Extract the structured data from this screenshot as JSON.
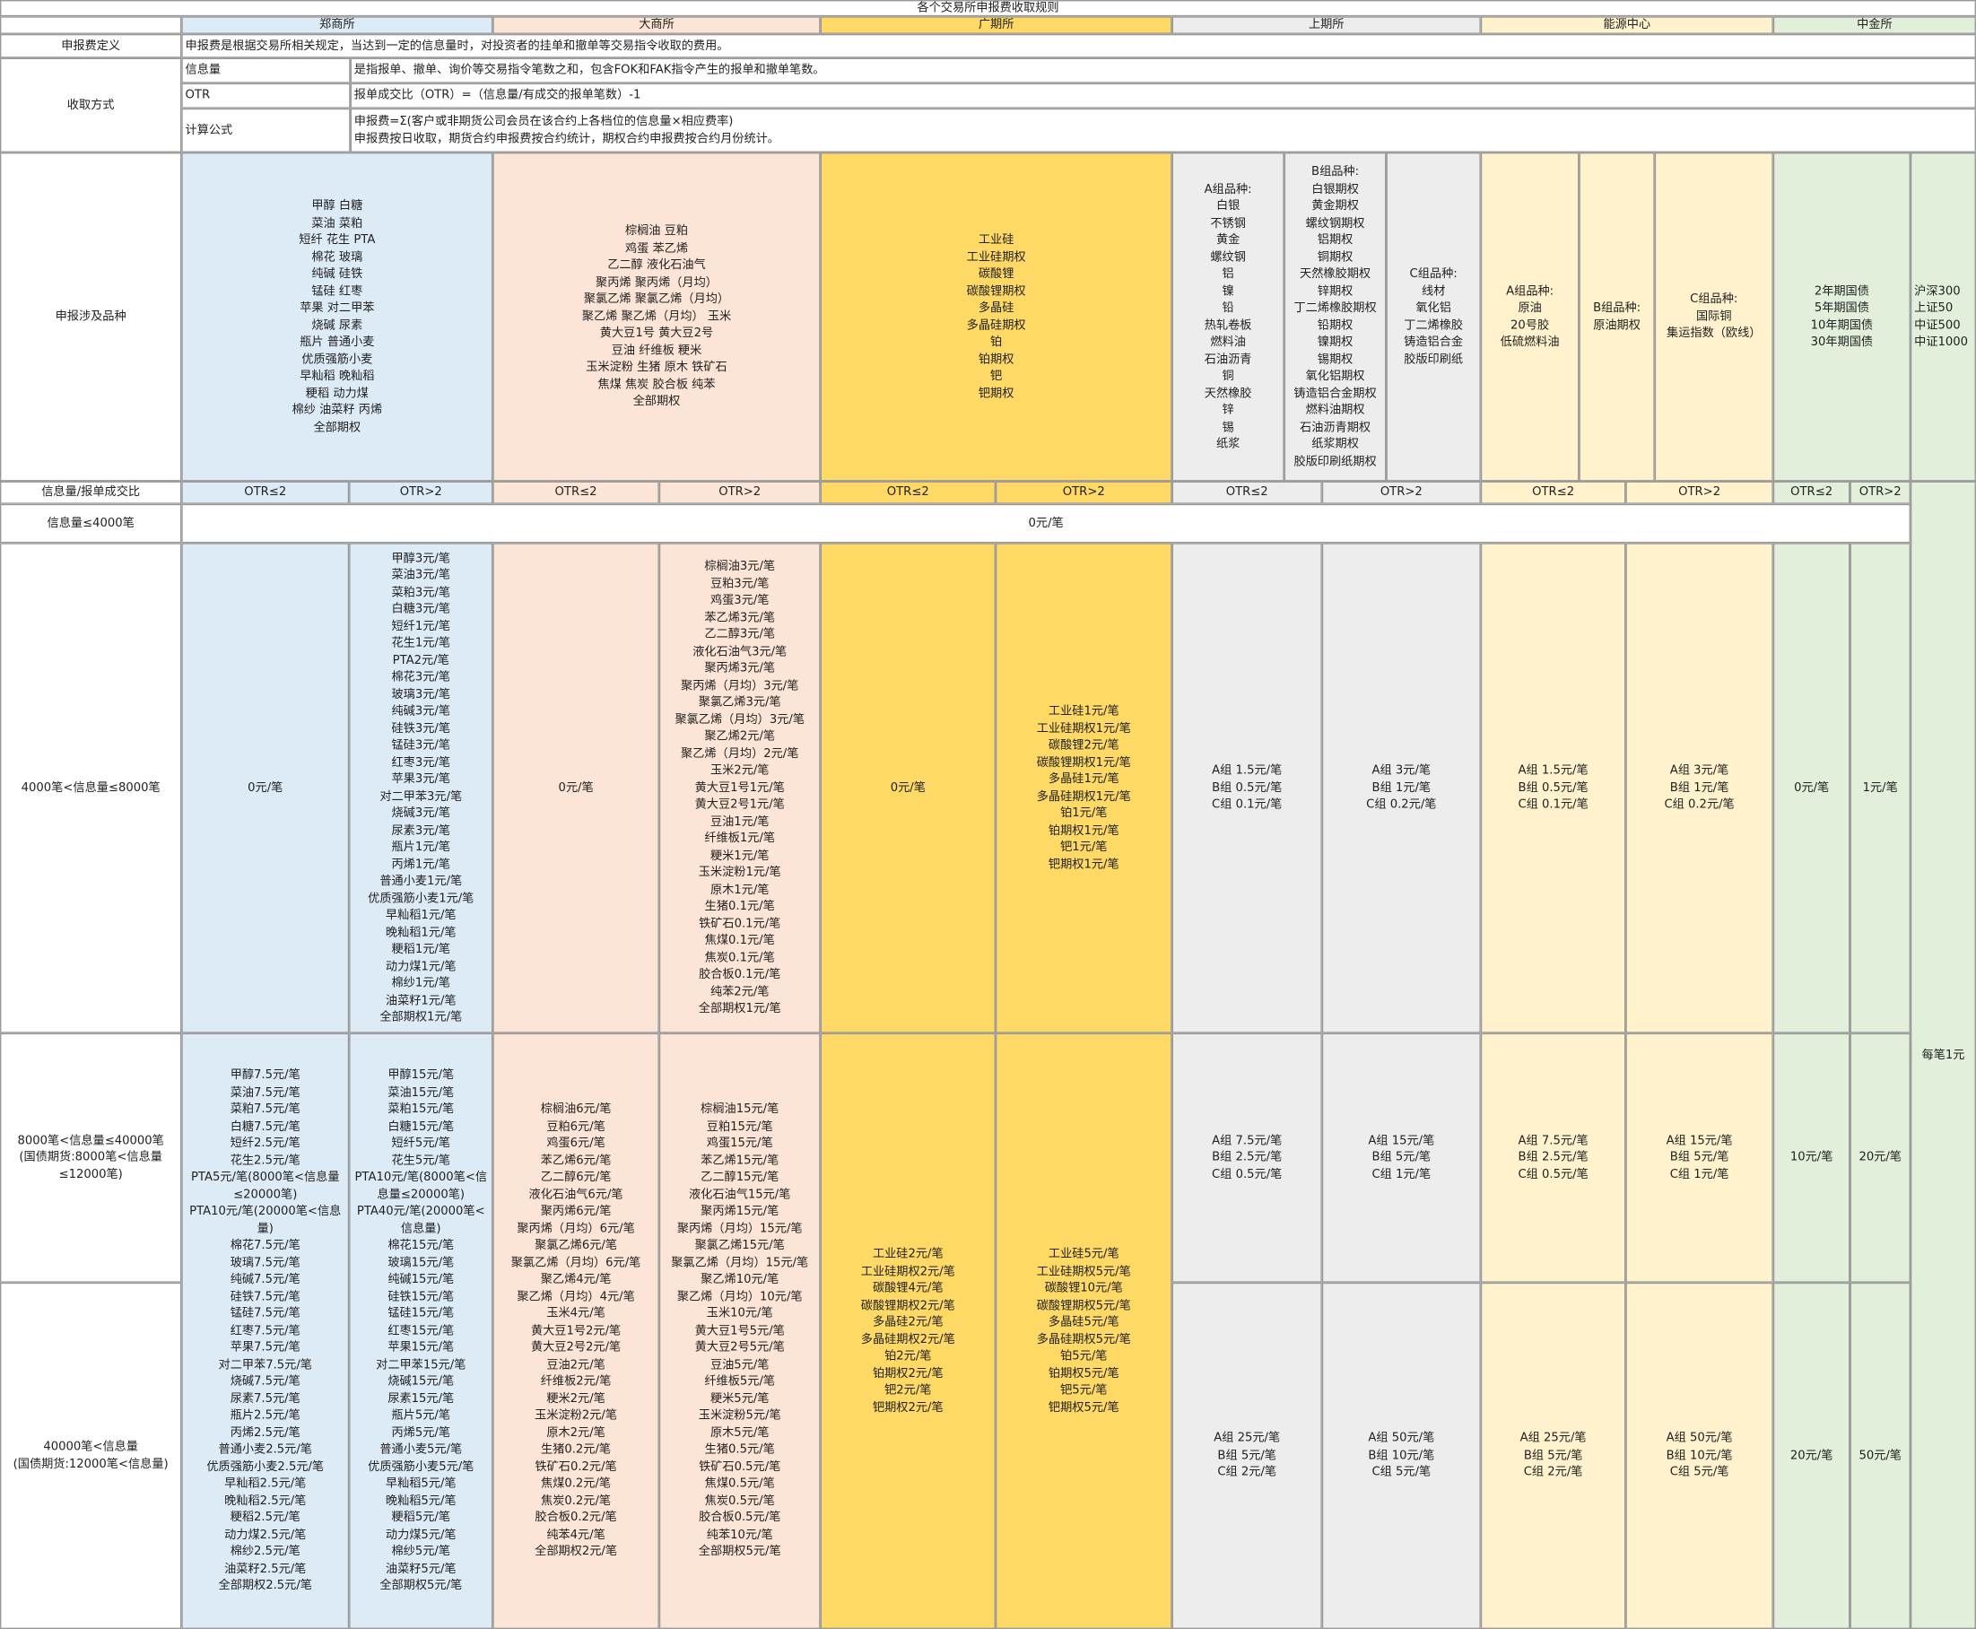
{
  "table": {
    "title": "各个交易所申报费收取规则",
    "header": [
      "郑商所",
      "大商所",
      "广期所",
      "上期所",
      "能源中心",
      "中金所"
    ],
    "rows": [
      [
        "申报费定义",
        "申报费是根据交易所相关规定，当达到一定的信息量时，对投资者的挂单和撤单等交易指令收取的费用。"
      ],
      [
        "收取方式",
        "信息量",
        "是指报单、撤单、询价等交易指令笔数之和，包含FOK和FAK指令产生的报单和撤单笔数。",
        "OTR",
        "报单成交比（OTR）=（信息量/有成交的报单笔数）-1",
        "计算公式",
        "申报费=Σ(客户或非期货公司会员在该合约上各档位的信息量×相应费率)\n申报费按日收取，期货合约申报费按合约统计，期权合约申报费按合约月份统计。"
      ],
      [
        "申报涉及品种",
        "甲醇 白糖\n菜油 菜粕\n短纤 花生 PTA\n棉花 玻璃\n纯碱 硅铁\n锰硅 红枣\n苹果 对二甲苯\n烧碱 尿素\n瓶片 普通小麦\n优质强筋小麦\n早籼稻 晚籼稻\n粳稻 动力煤\n棉纱 油菜籽 丙烯\n全部期权",
        "棕榈油 豆粕\n鸡蛋 苯乙烯\n乙二醇 液化石油气\n聚丙烯 聚丙烯（月均）\n聚氯乙烯 聚氯乙烯（月均）\n聚乙烯 聚乙烯（月均） 玉米\n黄大豆1号 黄大豆2号\n豆油 纤维板 粳米\n玉米淀粉 生猪 原木 铁矿石\n焦煤 焦炭 胶合板 纯苯\n全部期权",
        "工业硅\n工业硅期权\n碳酸锂\n碳酸锂期权\n多晶硅\n多晶硅期权\n铂\n铂期权\n钯\n钯期权",
        "A组品种:\n白银\n不锈钢\n黄金\n螺纹钢\n铝\n镍\n铅\n热轧卷板\n燃料油\n石油沥青\n铜\n天然橡胶\n锌\n锡\n纸浆",
        "B组品种:\n白银期权\n黄金期权\n螺纹钢期权\n铝期权\n铜期权\n天然橡胶期权\n锌期权\n丁二烯橡胶期权\n铅期权\n镍期权\n锡期权\n氧化铝期权\n铸造铝合金期权\n燃料油期权\n石油沥青期权\n纸浆期权\n胶版印刷纸期权",
        "C组品种:\n线材\n氧化铝\n丁二烯橡胶\n铸造铝合金\n胶版印刷纸",
        "A组品种:\n原油\n20号胶\n低硫燃料油",
        "B组品种:\n原油期权",
        "C组品种:\n国际铜\n集运指数（欧线）",
        "2年期国债\n5年期国债\n10年期国债\n30年期国债",
        "沪深300\n上证50\n中证500\n中证1000"
      ],
      [
        "信息量/报单成交比",
        "OTR≤2",
        "OTR>2",
        "OTR≤2",
        "OTR>2",
        "OTR≤2",
        "OTR>2",
        "OTR≤2",
        "OTR>2",
        "OTR≤2",
        "OTR>2",
        "OTR≤2",
        "OTR>2"
      ],
      [
        "信息量≤4000笔",
        "0元/笔"
      ],
      [
        "4000笔<信息量≤8000笔",
        "0元/笔",
        "甲醇3元/笔\n菜油3元/笔\n菜粕3元/笔\n白糖3元/笔\n短纤1元/笔\n花生1元/笔\nPTA2元/笔\n棉花3元/笔\n玻璃3元/笔\n纯碱3元/笔\n硅铁3元/笔\n锰硅3元/笔\n红枣3元/笔\n苹果3元/笔\n对二甲苯3元/笔\n烧碱3元/笔\n尿素3元/笔\n瓶片1元/笔\n丙烯1元/笔\n普通小麦1元/笔\n优质强筋小麦1元/笔\n早籼稻1元/笔\n晚籼稻1元/笔\n粳稻1元/笔\n动力煤1元/笔\n棉纱1元/笔\n油菜籽1元/笔\n全部期权1元/笔",
        "0元/笔",
        "棕榈油3元/笔\n豆粕3元/笔\n鸡蛋3元/笔\n苯乙烯3元/笔\n乙二醇3元/笔\n液化石油气3元/笔\n聚丙烯3元/笔\n聚丙烯（月均）3元/笔\n聚氯乙烯3元/笔\n聚氯乙烯（月均）3元/笔\n聚乙烯2元/笔\n聚乙烯（月均）2元/笔\n玉米2元/笔\n黄大豆1号1元/笔\n黄大豆2号1元/笔\n豆油1元/笔\n纤维板1元/笔\n粳米1元/笔\n玉米淀粉1元/笔\n原木1元/笔\n生猪0.1元/笔\n铁矿石0.1元/笔\n焦煤0.1元/笔\n焦炭0.1元/笔\n胶合板0.1元/笔\n纯苯2元/笔\n全部期权1元/笔",
        "0元/笔",
        "工业硅1元/笔\n工业硅期权1元/笔\n碳酸锂2元/笔\n碳酸锂期权1元/笔\n多晶硅1元/笔\n多晶硅期权1元/笔\n铂1元/笔\n铂期权1元/笔\n钯1元/笔\n钯期权1元/笔",
        "A组 1.5元/笔\nB组 0.5元/笔\nC组 0.1元/笔",
        "A组 3元/笔\nB组 1元/笔\nC组 0.2元/笔",
        "A组 1.5元/笔\nB组 0.5元/笔\nC组 0.1元/笔",
        "A组 3元/笔\nB组 1元/笔\nC组 0.2元/笔",
        "0元/笔",
        "1元/笔",
        "每笔1元"
      ],
      [
        "8000笔<信息量≤40000笔\n(国债期货:8000笔<信息量≤12000笔)",
        "甲醇7.5元/笔\n菜油7.5元/笔\n菜粕7.5元/笔\n白糖7.5元/笔\n短纤2.5元/笔\n花生2.5元/笔\nPTA5元/笔(8000笔<信息量≤20000笔)\nPTA10元/笔(20000笔<信息量)\n棉花7.5元/笔\n玻璃7.5元/笔\n纯碱7.5元/笔\n硅铁7.5元/笔\n锰硅7.5元/笔\n红枣7.5元/笔\n苹果7.5元/笔\n对二甲苯7.5元/笔\n烧碱7.5元/笔\n尿素7.5元/笔\n瓶片2.5元/笔\n丙烯2.5元/笔\n普通小麦2.5元/笔\n优质强筋小麦2.5元/笔\n早籼稻2.5元/笔\n晚籼稻2.5元/笔\n粳稻2.5元/笔\n动力煤2.5元/笔\n棉纱2.5元/笔\n油菜籽2.5元/笔\n全部期权2.5元/笔",
        "甲醇15元/笔\n菜油15元/笔\n菜粕15元/笔\n白糖15元/笔\n短纤5元/笔\n花生5元/笔\nPTA10元/笔(8000笔<信息量≤20000笔)\nPTA40元/笔(20000笔<信息量)\n棉花15元/笔\n玻璃15元/笔\n纯碱15元/笔\n硅铁15元/笔\n锰硅15元/笔\n红枣15元/笔\n苹果15元/笔\n对二甲苯15元/笔\n烧碱15元/笔\n尿素15元/笔\n瓶片5元/笔\n丙烯5元/笔\n普通小麦5元/笔\n优质强筋小麦5元/笔\n早籼稻5元/笔\n晚籼稻5元/笔\n粳稻5元/笔\n动力煤5元/笔\n棉纱5元/笔\n油菜籽5元/笔\n全部期权5元/笔",
        "棕榈油6元/笔\n豆粕6元/笔\n鸡蛋6元/笔\n苯乙烯6元/笔\n乙二醇6元/笔\n液化石油气6元/笔\n聚丙烯6元/笔\n聚丙烯（月均）6元/笔\n聚氯乙烯6元/笔\n聚氯乙烯（月均）6元/笔\n聚乙烯4元/笔\n聚乙烯（月均）4元/笔\n玉米4元/笔\n黄大豆1号2元/笔\n黄大豆2号2元/笔\n豆油2元/笔\n纤维板2元/笔\n粳米2元/笔\n玉米淀粉2元/笔\n原木2元/笔\n生猪0.2元/笔\n铁矿石0.2元/笔\n焦煤0.2元/笔\n焦炭0.2元/笔\n胶合板0.2元/笔\n纯苯4元/笔\n全部期权2元/笔",
        "棕榈油15元/笔\n豆粕15元/笔\n鸡蛋15元/笔\n苯乙烯15元/笔\n乙二醇15元/笔\n液化石油气15元/笔\n聚丙烯15元/笔\n聚丙烯（月均）15元/笔\n聚氯乙烯15元/笔\n聚氯乙烯（月均）15元/笔\n聚乙烯10元/笔\n聚乙烯（月均）10元/笔\n玉米10元/笔\n黄大豆1号5元/笔\n黄大豆2号5元/笔\n豆油5元/笔\n纤维板5元/笔\n粳米5元/笔\n玉米淀粉5元/笔\n原木5元/笔\n生猪0.5元/笔\n铁矿石0.5元/笔\n焦煤0.5元/笔\n焦炭0.5元/笔\n胶合板0.5元/笔\n纯苯10元/笔\n全部期权5元/笔",
        "工业硅2元/笔\n工业硅期权2元/笔\n碳酸锂4元/笔\n碳酸锂期权2元/笔\n多晶硅2元/笔\n多晶硅期权2元/笔\n铂2元/笔\n铂期权2元/笔\n钯2元/笔\n钯期权2元/笔",
        "工业硅5元/笔\n工业硅期权5元/笔\n碳酸锂10元/笔\n碳酸锂期权5元/笔\n多晶硅5元/笔\n多晶硅期权5元/笔\n铂5元/笔\n铂期权5元/笔\n钯5元/笔\n钯期权5元/笔",
        "A组 7.5元/笔\nB组 2.5元/笔\nC组 0.5元/笔",
        "A组 15元/笔\nB组 5元/笔\nC组 1元/笔",
        "A组 7.5元/笔\nB组 2.5元/笔\nC组 0.5元/笔",
        "A组 15元/笔\nB组 5元/笔\nC组 1元/笔",
        "10元/笔",
        "20元/笔"
      ],
      [
        "40000笔<信息量\n(国债期货:12000笔<信息量)",
        "A组 25元/笔\nB组 5元/笔\nC组 2元/笔",
        "A组 50元/笔\nB组 10元/笔\nC组 5元/笔",
        "A组 25元/笔\nB组 5元/笔\nC组 2元/笔",
        "A组 50元/笔\nB组 10元/笔\nC组 5元/笔",
        "20元/笔",
        "50元/笔"
      ]
    ]
  }
}
